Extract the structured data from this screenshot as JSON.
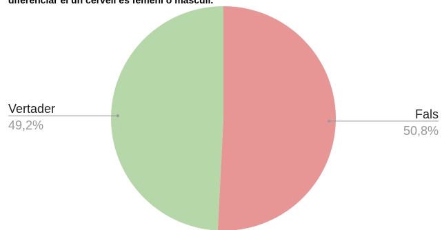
{
  "chart_data": {
    "type": "pie",
    "title": "diferenciar el un cervell es femení o masculí.",
    "categories": [
      "Fals",
      "Vertader"
    ],
    "values": [
      50.8,
      49.2
    ],
    "value_labels": [
      "50,8%",
      "49,2%"
    ],
    "colors": [
      "#e79595",
      "#b6d7a8"
    ]
  }
}
